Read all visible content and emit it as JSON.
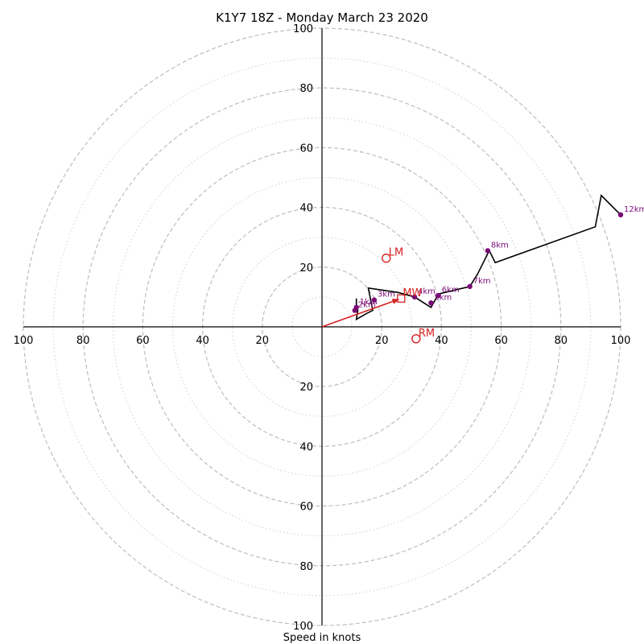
{
  "chart_data": {
    "type": "hodograph",
    "title": "K1Y7 18Z - Monday March 23 2020",
    "xlabel": "Speed in knots",
    "ylabel": "",
    "range": [
      -100,
      100
    ],
    "axis_ticks": [
      100,
      80,
      60,
      40,
      20
    ],
    "axis_tick_labels": [
      "100",
      "80",
      "60",
      "40",
      "20"
    ],
    "rings_dashed": [
      20,
      40,
      60,
      80,
      100
    ],
    "rings_dotted": [
      10,
      30,
      50,
      70,
      90
    ],
    "grid": true,
    "colors": {
      "trace": "#000000",
      "points": "#7a0a78",
      "labels": "#7a0a78",
      "storm": "#d62222",
      "ring_dashed": "#bdbdbd",
      "ring_dotted": "#cfcfcf",
      "axes": "#000000"
    },
    "trace": [
      [
        11.5,
        9.5
      ],
      [
        11.5,
        6.5
      ],
      [
        12,
        5.5
      ],
      [
        11.5,
        2.5
      ],
      [
        15,
        4.5
      ],
      [
        17,
        5.5
      ],
      [
        15.5,
        13
      ],
      [
        25.5,
        11.5
      ],
      [
        31,
        10
      ],
      [
        36.5,
        6.5
      ],
      [
        39,
        11
      ],
      [
        49.5,
        13.5
      ],
      [
        52,
        17.5
      ],
      [
        56,
        25.5
      ],
      [
        58,
        21.5
      ],
      [
        91.5,
        33.5
      ],
      [
        93.5,
        44
      ],
      [
        100,
        37.5
      ]
    ],
    "height_points": [
      {
        "label": "1km",
        "u": 11.5,
        "v": 6.5
      },
      {
        "label": "2km",
        "u": 11,
        "v": 5.5
      },
      {
        "label": "3km",
        "u": 17.5,
        "v": 9
      },
      {
        "label": "4km",
        "u": 31,
        "v": 10
      },
      {
        "label": "5km",
        "u": 36.5,
        "v": 8
      },
      {
        "label": "6km",
        "u": 39,
        "v": 10.5
      },
      {
        "label": "7km",
        "u": 49.5,
        "v": 13.5
      },
      {
        "label": "8km",
        "u": 55.5,
        "v": 25.5
      },
      {
        "label": "12km",
        "u": 100,
        "v": 37.5
      }
    ],
    "storm_motion": {
      "mean_wind": {
        "label": "MW",
        "u": 26.5,
        "v": 9.5
      },
      "left_mover": {
        "label": "LM",
        "u": 21.5,
        "v": 23
      },
      "right_mover": {
        "label": "RM",
        "u": 31.5,
        "v": -4
      }
    },
    "legend": "none"
  }
}
